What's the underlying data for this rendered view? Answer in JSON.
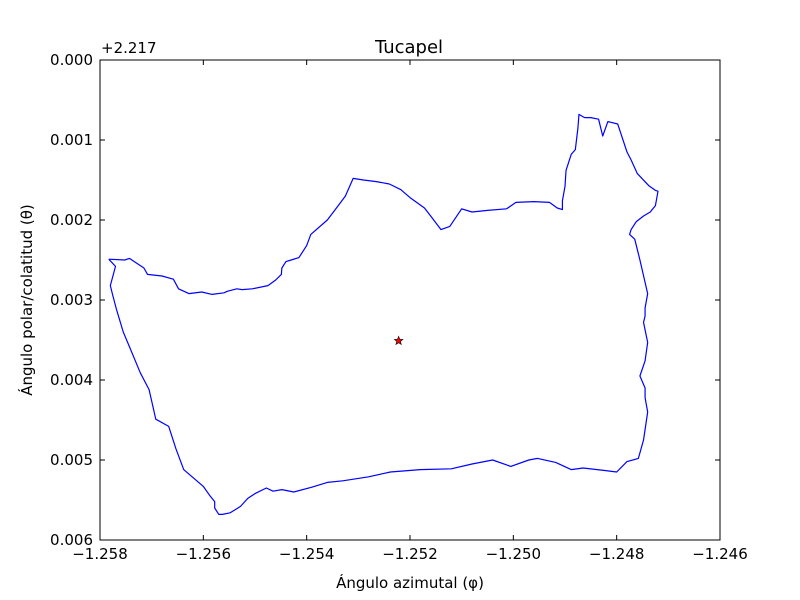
{
  "chart_data": {
    "type": "line",
    "title": "Tucapel",
    "xlabel": "Ángulo azimutal (φ)",
    "ylabel": "Ángulo polar/colatitud (θ)",
    "y_offset_label": "+2.217",
    "xlim": [
      -1.258,
      -1.246
    ],
    "ylim": [
      0.006,
      0.0
    ],
    "y_inverted": true,
    "grid": false,
    "x_ticks": [
      -1.258,
      -1.256,
      -1.254,
      -1.252,
      -1.25,
      -1.248,
      -1.246
    ],
    "x_tick_labels": [
      "−1.258",
      "−1.256",
      "−1.254",
      "−1.252",
      "−1.250",
      "−1.248",
      "−1.246"
    ],
    "y_ticks": [
      0.0,
      0.001,
      0.002,
      0.003,
      0.004,
      0.005,
      0.006
    ],
    "y_tick_labels": [
      "0.000",
      "0.001",
      "0.002",
      "0.003",
      "0.004",
      "0.005",
      "0.006"
    ],
    "series": [
      {
        "color": "#0000ff",
        "marker": "none",
        "x": [
          -1.25783,
          -1.25752,
          -1.25743,
          -1.25715,
          -1.25708,
          -1.2568,
          -1.25658,
          -1.25648,
          -1.25628,
          -1.25603,
          -1.25583,
          -1.2556,
          -1.25553,
          -1.25535,
          -1.25525,
          -1.25505,
          -1.25475,
          -1.2546,
          -1.25449,
          -1.25448,
          -1.2544,
          -1.2543,
          -1.25415,
          -1.254,
          -1.25392,
          -1.2536,
          -1.2534,
          -1.25325,
          -1.2531,
          -1.2529,
          -1.25265,
          -1.2524,
          -1.25218,
          -1.252,
          -1.25172,
          -1.2516,
          -1.2514,
          -1.25123,
          -1.251,
          -1.2508,
          -1.2505,
          -1.25013,
          -1.24995,
          -1.2496,
          -1.2493,
          -1.24915,
          -1.24905,
          -1.24905,
          -1.249,
          -1.24898,
          -1.24888,
          -1.2488,
          -1.24875,
          -1.24873,
          -1.24862,
          -1.2485,
          -1.24835,
          -1.24827,
          -1.24817,
          -1.24798,
          -1.2478,
          -1.24772,
          -1.2476,
          -1.24738,
          -1.24725,
          -1.2472,
          -1.24725,
          -1.24735,
          -1.24748,
          -1.24762,
          -1.24772,
          -1.24775,
          -1.24765,
          -1.24755,
          -1.2474,
          -1.24745,
          -1.24745,
          -1.24748,
          -1.2474,
          -1.24745,
          -1.24755,
          -1.24745,
          -1.24745,
          -1.2474,
          -1.24748,
          -1.24758,
          -1.2478,
          -1.248,
          -1.24825,
          -1.24865,
          -1.24888,
          -1.24918,
          -1.24953,
          -1.2497,
          -1.25005,
          -1.2504,
          -1.2508,
          -1.2512,
          -1.2518,
          -1.25238,
          -1.2528,
          -1.2533,
          -1.2536,
          -1.2539,
          -1.25425,
          -1.25448,
          -1.25465,
          -1.25478,
          -1.255,
          -1.25514,
          -1.25528,
          -1.25548,
          -1.25563,
          -1.2557,
          -1.25578,
          -1.25578,
          -1.25588,
          -1.256,
          -1.2562,
          -1.25638,
          -1.25653,
          -1.25667,
          -1.25692,
          -1.25705,
          -1.25722,
          -1.25742,
          -1.25755,
          -1.25768,
          -1.25775,
          -1.2578,
          -1.2577,
          -1.25783
        ],
        "y": [
          0.00249,
          0.0025,
          0.00248,
          0.0026,
          0.00268,
          0.0027,
          0.00274,
          0.00286,
          0.00292,
          0.0029,
          0.00293,
          0.00291,
          0.00289,
          0.00286,
          0.00287,
          0.00286,
          0.00282,
          0.00275,
          0.00268,
          0.0026,
          0.00252,
          0.0025,
          0.00247,
          0.00232,
          0.00218,
          0.002,
          0.00183,
          0.0017,
          0.00148,
          0.0015,
          0.00152,
          0.00155,
          0.00162,
          0.00172,
          0.00185,
          0.00195,
          0.00212,
          0.00208,
          0.00186,
          0.0019,
          0.00188,
          0.00186,
          0.00178,
          0.00177,
          0.00178,
          0.00185,
          0.00187,
          0.00176,
          0.00158,
          0.00138,
          0.00118,
          0.00112,
          0.00085,
          0.00068,
          0.00072,
          0.00072,
          0.00074,
          0.00095,
          0.00077,
          0.0008,
          0.00115,
          0.00125,
          0.00142,
          0.00157,
          0.00163,
          0.00164,
          0.00182,
          0.0019,
          0.00195,
          0.00202,
          0.00212,
          0.00218,
          0.00224,
          0.0025,
          0.00292,
          0.0031,
          0.0032,
          0.00328,
          0.00353,
          0.00376,
          0.00395,
          0.0041,
          0.00422,
          0.0044,
          0.00475,
          0.00498,
          0.00502,
          0.00515,
          0.00513,
          0.0051,
          0.00512,
          0.00503,
          0.00498,
          0.005,
          0.00508,
          0.005,
          0.00505,
          0.00511,
          0.00512,
          0.00515,
          0.00521,
          0.00526,
          0.00528,
          0.00534,
          0.0054,
          0.00537,
          0.00539,
          0.00535,
          0.00542,
          0.00548,
          0.00558,
          0.00566,
          0.00568,
          0.00568,
          0.0056,
          0.00552,
          0.00544,
          0.00533,
          0.00522,
          0.00512,
          0.00486,
          0.00458,
          0.00449,
          0.00412,
          0.00391,
          0.0036,
          0.0034,
          0.00312,
          0.00295,
          0.00282,
          0.00258,
          0.00249
        ]
      },
      {
        "name": "",
        "color": "#ff0000",
        "marker": "star",
        "x": [
          -1.25222
        ],
        "y": [
          0.00351
        ]
      }
    ]
  }
}
